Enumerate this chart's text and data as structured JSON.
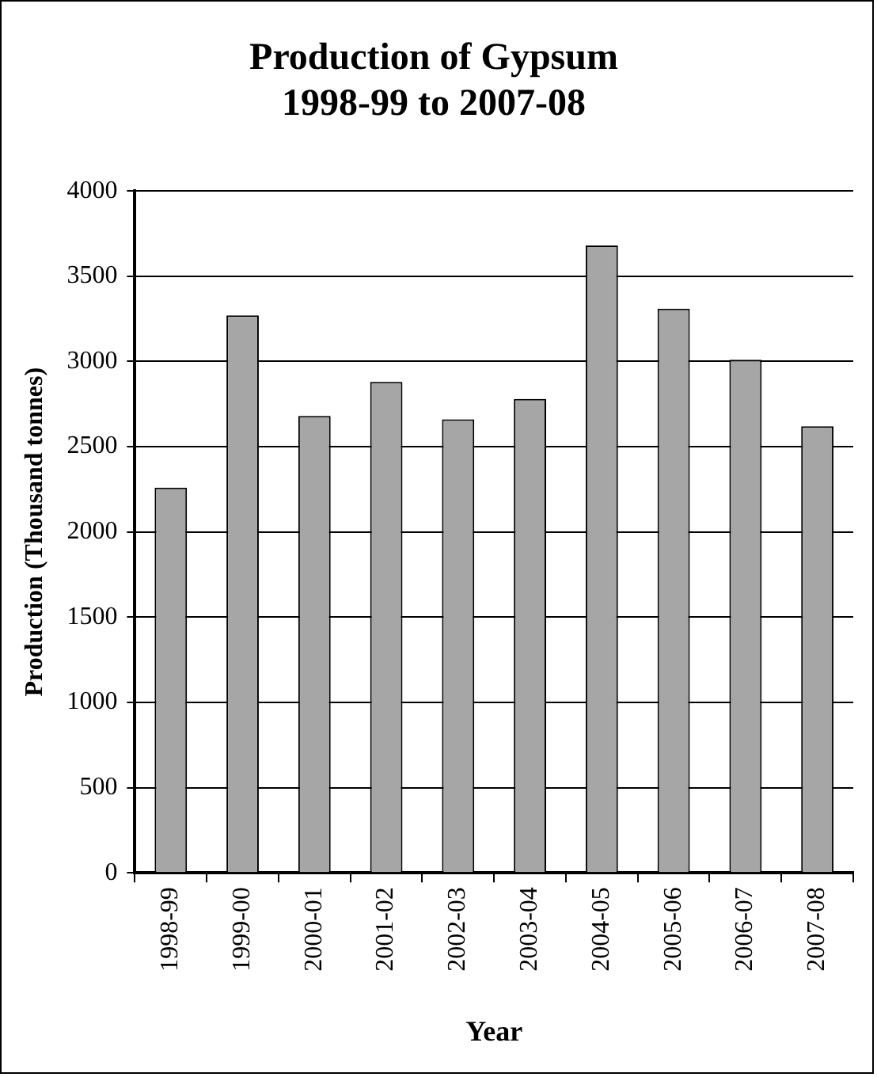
{
  "chart_data": {
    "type": "bar",
    "title": "Production of Gypsum\n1998-99 to 2007-08",
    "xlabel": "Year",
    "ylabel": "Production (Thousand tonnes)",
    "categories": [
      "1998-99",
      "1999-00",
      "2000-01",
      "2001-02",
      "2002-03",
      "2003-04",
      "2004-05",
      "2005-06",
      "2006-07",
      "2007-08"
    ],
    "values": [
      2260,
      3270,
      2680,
      2880,
      2660,
      2780,
      3680,
      3310,
      3010,
      2620
    ],
    "color": "#a6a6a6",
    "ylim": [
      0,
      4000
    ],
    "yticks": [
      0,
      500,
      1000,
      1500,
      2000,
      2500,
      3000,
      3500,
      4000
    ],
    "grid": "y"
  }
}
